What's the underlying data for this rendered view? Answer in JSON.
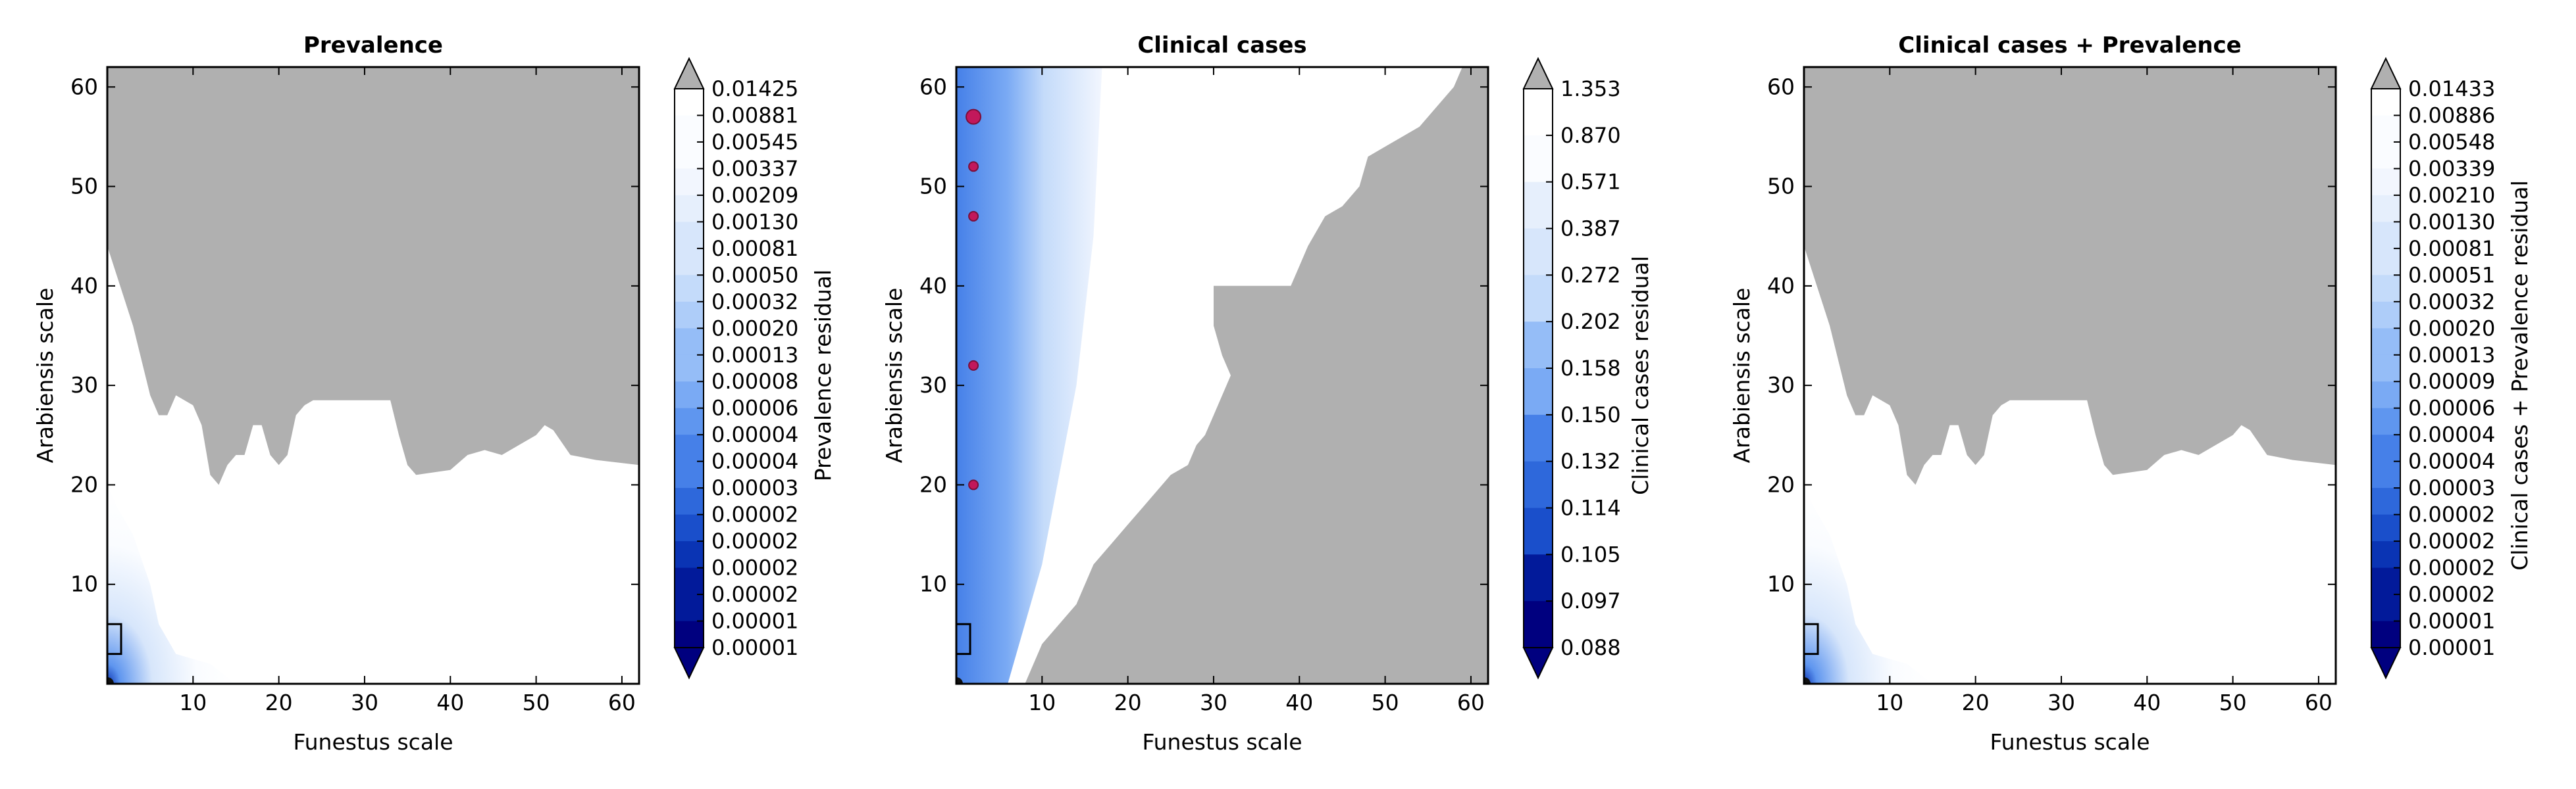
{
  "figure": {
    "background": "#ffffff",
    "palette": {
      "region_fill": "#b0b0b0",
      "frame": "#000000",
      "colorbar_levels": [
        "#00007f",
        "#021a9a",
        "#0a34b4",
        "#1a4fcb",
        "#2e68db",
        "#4680e8",
        "#5f96ef",
        "#7aaaf4",
        "#95bdf7",
        "#aecdf9",
        "#c4dbfa",
        "#d7e6fb",
        "#e6effc",
        "#f2f6fe",
        "#fafcff",
        "#ffffff"
      ],
      "over_color": "#b0b0b0",
      "under_color": "#00007f",
      "marker_color": "#c2185b"
    }
  },
  "chart_data": [
    {
      "type": "heatmap",
      "title": "Prevalence",
      "xlabel": "Funestus scale",
      "ylabel": "Arabiensis scale",
      "xlim": [
        0,
        62
      ],
      "ylim": [
        0,
        62
      ],
      "xticks": [
        10,
        20,
        30,
        40,
        50,
        60
      ],
      "yticks": [
        10,
        20,
        30,
        40,
        50,
        60
      ],
      "colorbar_label": "Prevalence residual",
      "colorbar_ticks": [
        "0.01425",
        "0.00881",
        "0.00545",
        "0.00337",
        "0.00209",
        "0.00130",
        "0.00081",
        "0.00050",
        "0.00032",
        "0.00020",
        "0.00013",
        "0.00008",
        "0.00006",
        "0.00004",
        "0.00004",
        "0.00003",
        "0.00002",
        "0.00002",
        "0.00002",
        "0.00002",
        "0.00001",
        "0.00001"
      ],
      "grey_region_boundary": [
        [
          0,
          44
        ],
        [
          3,
          36
        ],
        [
          5,
          29
        ],
        [
          6,
          27
        ],
        [
          7,
          27
        ],
        [
          8,
          29
        ],
        [
          10,
          28
        ],
        [
          11,
          26
        ],
        [
          12,
          21
        ],
        [
          13,
          20
        ],
        [
          14,
          22
        ],
        [
          15,
          23
        ],
        [
          16,
          23
        ],
        [
          17,
          26
        ],
        [
          18,
          26
        ],
        [
          19,
          23
        ],
        [
          20,
          22
        ],
        [
          21,
          23
        ],
        [
          22,
          27
        ],
        [
          23,
          28
        ],
        [
          24,
          28.5
        ],
        [
          33,
          28.5
        ],
        [
          34,
          25
        ],
        [
          35,
          22
        ],
        [
          36,
          21
        ],
        [
          40,
          21.5
        ],
        [
          42,
          23
        ],
        [
          44,
          23.5
        ],
        [
          46,
          23
        ],
        [
          48,
          24
        ],
        [
          50,
          25
        ],
        [
          51,
          26
        ],
        [
          52,
          25.5
        ],
        [
          54,
          23
        ],
        [
          57,
          22.5
        ],
        [
          62,
          22
        ]
      ],
      "gradient_region": [
        [
          0,
          0
        ],
        [
          15,
          0
        ],
        [
          12,
          2
        ],
        [
          8,
          3
        ],
        [
          6,
          6
        ],
        [
          5,
          10
        ],
        [
          3,
          15
        ],
        [
          1,
          18
        ],
        [
          0,
          20
        ]
      ],
      "best_fit_box": [
        0,
        3,
        1,
        6
      ]
    },
    {
      "type": "heatmap",
      "title": "Clinical cases",
      "xlabel": "Funestus scale",
      "ylabel": "Arabiensis scale",
      "xlim": [
        0,
        62
      ],
      "ylim": [
        0,
        62
      ],
      "xticks": [
        10,
        20,
        30,
        40,
        50,
        60
      ],
      "yticks": [
        10,
        20,
        30,
        40,
        50,
        60
      ],
      "colorbar_label": "Clinical cases residual",
      "colorbar_ticks": [
        "1.353",
        "0.870",
        "0.571",
        "0.387",
        "0.272",
        "0.202",
        "0.158",
        "0.150",
        "0.132",
        "0.114",
        "0.105",
        "0.097",
        "0.088"
      ],
      "grey_region_boundary": [
        [
          8,
          0
        ],
        [
          62,
          0
        ],
        [
          62,
          62
        ],
        [
          59,
          62
        ],
        [
          58,
          60
        ],
        [
          56,
          58
        ],
        [
          54,
          56
        ],
        [
          52,
          55
        ],
        [
          50,
          54
        ],
        [
          48,
          53
        ],
        [
          47,
          50
        ],
        [
          45,
          48
        ],
        [
          43,
          47
        ],
        [
          41,
          44
        ],
        [
          40,
          42
        ],
        [
          39,
          40
        ],
        [
          30,
          40
        ],
        [
          30,
          36
        ],
        [
          31,
          33
        ],
        [
          32,
          31
        ],
        [
          31,
          29
        ],
        [
          30,
          27
        ],
        [
          29,
          25
        ],
        [
          28,
          24
        ],
        [
          27,
          22
        ],
        [
          25,
          21
        ],
        [
          22,
          18
        ],
        [
          20,
          16
        ],
        [
          18,
          14
        ],
        [
          16,
          12
        ],
        [
          15,
          10
        ],
        [
          14,
          8
        ],
        [
          12,
          6
        ],
        [
          10,
          4
        ],
        [
          9,
          2
        ]
      ],
      "gradient_region": [
        [
          0,
          0
        ],
        [
          6,
          0
        ],
        [
          10,
          12
        ],
        [
          14,
          30
        ],
        [
          16,
          45
        ],
        [
          17,
          62
        ],
        [
          0,
          62
        ]
      ],
      "markers": [
        [
          2,
          57
        ],
        [
          2,
          52
        ],
        [
          2,
          47
        ],
        [
          2,
          32
        ],
        [
          2,
          20
        ]
      ],
      "best_fit_box": [
        0,
        3,
        1,
        6
      ]
    },
    {
      "type": "heatmap",
      "title": "Clinical cases + Prevalence",
      "xlabel": "Funestus scale",
      "ylabel": "Arabiensis scale",
      "xlim": [
        0,
        62
      ],
      "ylim": [
        0,
        62
      ],
      "xticks": [
        10,
        20,
        30,
        40,
        50,
        60
      ],
      "yticks": [
        10,
        20,
        30,
        40,
        50,
        60
      ],
      "colorbar_label": "Clinical cases + Prevalence residual",
      "colorbar_ticks": [
        "0.01433",
        "0.00886",
        "0.00548",
        "0.00339",
        "0.00210",
        "0.00130",
        "0.00081",
        "0.00051",
        "0.00032",
        "0.00020",
        "0.00013",
        "0.00009",
        "0.00006",
        "0.00004",
        "0.00004",
        "0.00003",
        "0.00002",
        "0.00002",
        "0.00002",
        "0.00002",
        "0.00001",
        "0.00001"
      ],
      "grey_region_boundary": [
        [
          0,
          44
        ],
        [
          3,
          36
        ],
        [
          5,
          29
        ],
        [
          6,
          27
        ],
        [
          7,
          27
        ],
        [
          8,
          29
        ],
        [
          10,
          28
        ],
        [
          11,
          26
        ],
        [
          12,
          21
        ],
        [
          13,
          20
        ],
        [
          14,
          22
        ],
        [
          15,
          23
        ],
        [
          16,
          23
        ],
        [
          17,
          26
        ],
        [
          18,
          26
        ],
        [
          19,
          23
        ],
        [
          20,
          22
        ],
        [
          21,
          23
        ],
        [
          22,
          27
        ],
        [
          23,
          28
        ],
        [
          24,
          28.5
        ],
        [
          33,
          28.5
        ],
        [
          34,
          25
        ],
        [
          35,
          22
        ],
        [
          36,
          21
        ],
        [
          40,
          21.5
        ],
        [
          42,
          23
        ],
        [
          44,
          23.5
        ],
        [
          46,
          23
        ],
        [
          48,
          24
        ],
        [
          50,
          25
        ],
        [
          51,
          26
        ],
        [
          52,
          25.5
        ],
        [
          54,
          23
        ],
        [
          57,
          22.5
        ],
        [
          62,
          22
        ]
      ],
      "gradient_region": [
        [
          0,
          0
        ],
        [
          15,
          0
        ],
        [
          12,
          2
        ],
        [
          8,
          3
        ],
        [
          6,
          6
        ],
        [
          5,
          10
        ],
        [
          3,
          15
        ],
        [
          1,
          18
        ],
        [
          0,
          20
        ]
      ],
      "best_fit_box": [
        0,
        3,
        1,
        6
      ]
    }
  ]
}
